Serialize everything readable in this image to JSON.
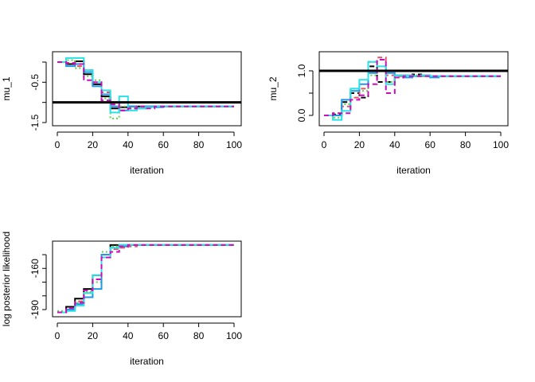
{
  "chart_data": [
    {
      "type": "line",
      "title": "",
      "xlabel": "iteration",
      "ylabel": "mu_1",
      "xlim": [
        0,
        100
      ],
      "ylim": [
        -1.55,
        0.2
      ],
      "xticks": [
        "0",
        "20",
        "40",
        "60",
        "80",
        "100"
      ],
      "yticks": [
        0,
        -0.5,
        -1,
        -1.5
      ],
      "ytick_labels": [
        "",
        "-0.5",
        "",
        "-1.5"
      ],
      "reference_line": -1.0,
      "grid": false,
      "x": [
        0,
        5,
        10,
        15,
        20,
        25,
        30,
        35,
        40,
        45,
        50,
        55,
        60,
        65,
        70,
        75,
        80,
        85,
        90,
        95,
        100
      ],
      "series": [
        {
          "color": "#000000",
          "dash": "solid",
          "values": [
            0,
            -0.05,
            0.02,
            -0.3,
            -0.55,
            -0.85,
            -1.15,
            -1.12,
            -1.1,
            -1.1,
            -1.1,
            -1.1,
            -1.1,
            -1.1,
            -1.1,
            -1.1,
            -1.1,
            -1.1,
            -1.1,
            -1.1,
            -1.1
          ]
        },
        {
          "color": "#DF536B",
          "dash": "dashed",
          "values": [
            0,
            -0.02,
            -0.1,
            -0.2,
            -0.5,
            -0.75,
            -1.05,
            -1.2,
            -1.15,
            -1.12,
            -1.1,
            -1.1,
            -1.1,
            -1.1,
            -1.1,
            -1.1,
            -1.1,
            -1.1,
            -1.1,
            -1.1,
            -1.1
          ]
        },
        {
          "color": "#61D04F",
          "dash": "dotted",
          "values": [
            0,
            0.05,
            -0.15,
            -0.35,
            -0.45,
            -0.9,
            -1.4,
            -1.1,
            -1.15,
            -1.1,
            -1.1,
            -1.1,
            -1.1,
            -1.1,
            -1.1,
            -1.1,
            -1.1,
            -1.1,
            -1.1,
            -1.1,
            -1.1
          ]
        },
        {
          "color": "#2297E6",
          "dash": "solid",
          "values": [
            0,
            -0.1,
            -0.05,
            -0.25,
            -0.6,
            -0.8,
            -1.1,
            -1.2,
            -1.1,
            -1.15,
            -1.1,
            -1.12,
            -1.1,
            -1.1,
            -1.1,
            -1.1,
            -1.1,
            -1.1,
            -1.1,
            -1.1,
            -1.1
          ]
        },
        {
          "color": "#28E2E5",
          "dash": "solid",
          "values": [
            0,
            0.1,
            0.1,
            -0.2,
            -0.5,
            -0.7,
            -1.25,
            -0.85,
            -1.2,
            -1.15,
            -1.12,
            -1.1,
            -1.1,
            -1.1,
            -1.1,
            -1.1,
            -1.1,
            -1.1,
            -1.1,
            -1.1,
            -1.1
          ]
        },
        {
          "color": "#CD0BBC",
          "dash": "dashed",
          "values": [
            0,
            -0.03,
            -0.05,
            -0.45,
            -0.5,
            -0.95,
            -1.05,
            -1.2,
            -1.15,
            -1.1,
            -1.15,
            -1.1,
            -1.1,
            -1.1,
            -1.1,
            -1.1,
            -1.1,
            -1.1,
            -1.1,
            -1.1,
            -1.1
          ]
        }
      ]
    },
    {
      "type": "line",
      "title": "",
      "xlabel": "iteration",
      "ylabel": "mu_2",
      "xlim": [
        0,
        100
      ],
      "ylim": [
        -0.2,
        1.45
      ],
      "xticks": [
        "0",
        "20",
        "40",
        "60",
        "80",
        "100"
      ],
      "yticks": [
        0,
        0.5,
        1
      ],
      "ytick_labels": [
        "0.0",
        "",
        "1.0"
      ],
      "reference_line": 1.0,
      "grid": false,
      "x": [
        0,
        5,
        10,
        15,
        20,
        25,
        30,
        35,
        40,
        45,
        50,
        55,
        60,
        65,
        70,
        75,
        80,
        85,
        90,
        95,
        100
      ],
      "series": [
        {
          "color": "#000000",
          "dash": "dashed",
          "values": [
            0,
            0.02,
            0.3,
            0.5,
            0.4,
            1.1,
            0.75,
            0.75,
            0.9,
            0.9,
            0.92,
            0.9,
            0.88,
            0.88,
            0.88,
            0.88,
            0.88,
            0.88,
            0.88,
            0.88,
            0.88
          ]
        },
        {
          "color": "#DF536B",
          "dash": "dashed",
          "values": [
            0,
            0.05,
            0.2,
            0.4,
            0.6,
            1.2,
            1.3,
            0.9,
            0.88,
            0.9,
            0.88,
            0.88,
            0.88,
            0.88,
            0.88,
            0.88,
            0.88,
            0.88,
            0.88,
            0.88,
            0.88
          ]
        },
        {
          "color": "#61D04F",
          "dash": "dotted",
          "values": [
            0,
            -0.05,
            0.25,
            0.6,
            0.55,
            0.9,
            1.0,
            0.75,
            0.85,
            0.88,
            0.9,
            0.88,
            0.88,
            0.88,
            0.88,
            0.88,
            0.88,
            0.88,
            0.88,
            0.88,
            0.88
          ]
        },
        {
          "color": "#2297E6",
          "dash": "solid",
          "values": [
            0,
            0.0,
            0.35,
            0.55,
            0.7,
            0.95,
            1.0,
            0.95,
            0.9,
            0.85,
            0.88,
            0.9,
            0.85,
            0.88,
            0.88,
            0.88,
            0.88,
            0.88,
            0.88,
            0.88,
            0.88
          ]
        },
        {
          "color": "#28E2E5",
          "dash": "solid",
          "values": [
            0,
            -0.1,
            0.1,
            0.6,
            0.8,
            1.2,
            1.1,
            0.7,
            0.9,
            0.9,
            0.88,
            0.9,
            0.88,
            0.88,
            0.88,
            0.88,
            0.88,
            0.88,
            0.88,
            0.88,
            0.88
          ]
        },
        {
          "color": "#CD0BBC",
          "dash": "dashed",
          "values": [
            0,
            0.05,
            0.05,
            0.35,
            0.45,
            0.7,
            1.25,
            0.5,
            0.85,
            0.88,
            0.88,
            0.88,
            0.88,
            0.88,
            0.88,
            0.88,
            0.88,
            0.88,
            0.88,
            0.88,
            0.88
          ]
        }
      ]
    },
    {
      "type": "line",
      "title": "",
      "xlabel": "iteration",
      "ylabel": "log posterior likelihood",
      "xlim": [
        0,
        100
      ],
      "ylim": [
        -195,
        -141
      ],
      "xticks": [
        "0",
        "20",
        "40",
        "60",
        "80",
        "100"
      ],
      "yticks": [
        -150,
        -160,
        -170,
        -180,
        -190
      ],
      "ytick_labels": [
        "",
        "-160",
        "",
        "",
        "-190"
      ],
      "grid": false,
      "x": [
        0,
        5,
        10,
        15,
        20,
        25,
        30,
        35,
        40,
        45,
        50,
        55,
        60,
        65,
        70,
        75,
        80,
        85,
        90,
        95,
        100
      ],
      "series": [
        {
          "color": "#000000",
          "dash": "solid",
          "values": [
            -192,
            -188,
            -182,
            -175,
            -165,
            -150,
            -143,
            -143,
            -143,
            -143,
            -143,
            -143,
            -143,
            -143,
            -143,
            -143,
            -143,
            -143,
            -143,
            -143,
            -143
          ]
        },
        {
          "color": "#DF536B",
          "dash": "dashed",
          "values": [
            -192,
            -189,
            -184,
            -178,
            -168,
            -150,
            -146,
            -145,
            -144,
            -143,
            -143,
            -143,
            -143,
            -143,
            -143,
            -143,
            -143,
            -143,
            -143,
            -143,
            -143
          ]
        },
        {
          "color": "#61D04F",
          "dash": "dotted",
          "values": [
            -191,
            -190,
            -185,
            -177,
            -170,
            -148,
            -144,
            -143,
            -143,
            -143,
            -143,
            -143,
            -143,
            -143,
            -143,
            -143,
            -143,
            -143,
            -143,
            -143,
            -143
          ]
        },
        {
          "color": "#2297E6",
          "dash": "solid",
          "values": [
            -192,
            -190,
            -186,
            -181,
            -175,
            -150,
            -145,
            -144,
            -143,
            -143,
            -143,
            -143,
            -143,
            -143,
            -143,
            -143,
            -143,
            -143,
            -143,
            -143,
            -143
          ]
        },
        {
          "color": "#28E2E5",
          "dash": "solid",
          "values": [
            -192,
            -191,
            -187,
            -178,
            -165,
            -152,
            -145,
            -143,
            -143,
            -143,
            -143,
            -143,
            -143,
            -143,
            -143,
            -143,
            -143,
            -143,
            -143,
            -143,
            -143
          ]
        },
        {
          "color": "#CD0BBC",
          "dash": "dashed",
          "values": [
            -192,
            -189,
            -185,
            -176,
            -168,
            -152,
            -148,
            -144,
            -143,
            -143,
            -143,
            -143,
            -143,
            -143,
            -143,
            -143,
            -143,
            -143,
            -143,
            -143,
            -143
          ]
        }
      ]
    }
  ]
}
